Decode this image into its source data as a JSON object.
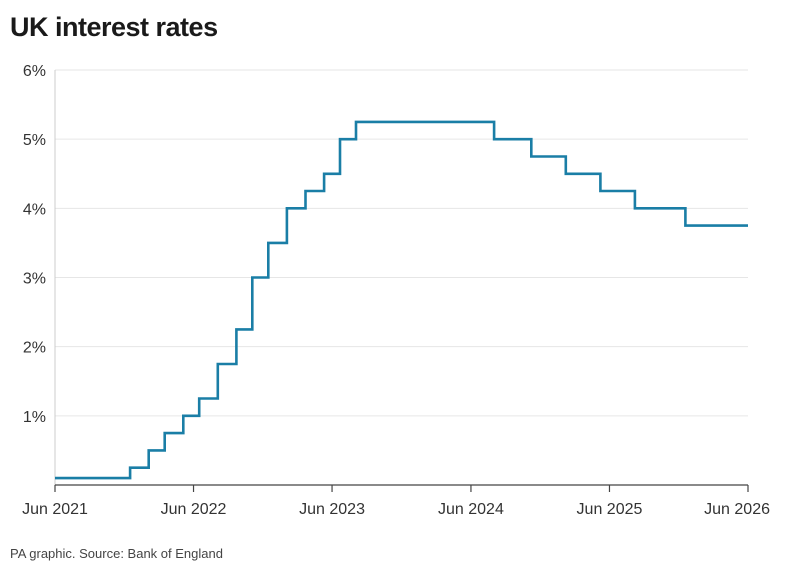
{
  "title": "UK interest rates",
  "source": "PA graphic. Source: Bank of England",
  "chart_data": {
    "type": "line",
    "step": true,
    "title": "UK interest rates",
    "xlabel": "",
    "ylabel": "",
    "xlim": [
      "2021-06-01",
      "2026-06-01"
    ],
    "ylim": [
      0,
      6
    ],
    "grid": "horizontal",
    "line_color": "#1a7ea6",
    "y_ticks": [
      {
        "value": 1,
        "label": "1%"
      },
      {
        "value": 2,
        "label": "2%"
      },
      {
        "value": 3,
        "label": "3%"
      },
      {
        "value": 4,
        "label": "4%"
      },
      {
        "value": 5,
        "label": "5%"
      },
      {
        "value": 6,
        "label": "6%"
      }
    ],
    "x_ticks": [
      {
        "value": "2021-06-01",
        "label": "Jun 2021"
      },
      {
        "value": "2022-06-01",
        "label": "Jun 2022"
      },
      {
        "value": "2023-06-01",
        "label": "Jun 2023"
      },
      {
        "value": "2024-06-01",
        "label": "Jun 2024"
      },
      {
        "value": "2025-06-01",
        "label": "Jun 2025"
      },
      {
        "value": "2026-06-01",
        "label": "Jun 2026"
      }
    ],
    "series": [
      {
        "points": [
          {
            "x": "2021-06-01",
            "y": 0.1
          },
          {
            "x": "2021-12-16",
            "y": 0.25
          },
          {
            "x": "2022-02-03",
            "y": 0.5
          },
          {
            "x": "2022-03-17",
            "y": 0.75
          },
          {
            "x": "2022-05-05",
            "y": 1.0
          },
          {
            "x": "2022-06-16",
            "y": 1.25
          },
          {
            "x": "2022-08-04",
            "y": 1.75
          },
          {
            "x": "2022-09-22",
            "y": 2.25
          },
          {
            "x": "2022-11-03",
            "y": 3.0
          },
          {
            "x": "2022-12-15",
            "y": 3.5
          },
          {
            "x": "2023-02-02",
            "y": 4.0
          },
          {
            "x": "2023-03-23",
            "y": 4.25
          },
          {
            "x": "2023-05-11",
            "y": 4.5
          },
          {
            "x": "2023-06-22",
            "y": 5.0
          },
          {
            "x": "2023-08-03",
            "y": 5.25
          },
          {
            "x": "2024-08-01",
            "y": 5.0
          },
          {
            "x": "2024-11-07",
            "y": 4.75
          },
          {
            "x": "2025-02-06",
            "y": 4.5
          },
          {
            "x": "2025-05-08",
            "y": 4.25
          },
          {
            "x": "2025-08-07",
            "y": 4.0
          },
          {
            "x": "2025-12-18",
            "y": 3.75
          },
          {
            "x": "2026-06-01",
            "y": 3.75
          }
        ]
      }
    ]
  }
}
